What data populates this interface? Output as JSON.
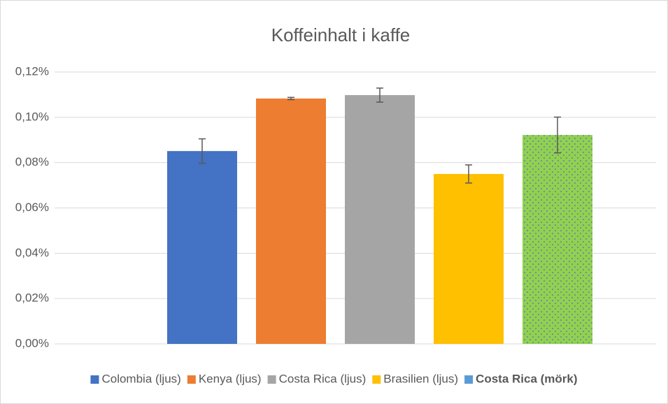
{
  "chart_data": {
    "type": "bar",
    "title": "Koffeinhalt i kaffe",
    "series": [
      {
        "name": "Colombia (ljus)",
        "color": "#4472c4",
        "values": [
          0.0851
        ],
        "errors": [
          0.0054
        ]
      },
      {
        "name": "Kenya (ljus)",
        "color": "#ed7d31",
        "values": [
          0.1083
        ],
        "errors": [
          0.0005
        ]
      },
      {
        "name": "Costa Rica (ljus)",
        "color": "#a5a5a5",
        "values": [
          0.1098
        ],
        "errors": [
          0.0031
        ]
      },
      {
        "name": "Brasilien (ljus)",
        "color": "#ffc000",
        "values": [
          0.075
        ],
        "errors": [
          0.004
        ]
      },
      {
        "name": "Costa Rica (mörk)",
        "color": "#92d050",
        "pattern": "dots",
        "legend_color": "#5b9bd5",
        "legend_bold": true,
        "values": [
          0.0922
        ],
        "errors": [
          0.0079
        ]
      }
    ],
    "ylim": [
      0,
      0.12
    ],
    "yticks": [
      {
        "value": 0,
        "label": "0,00%"
      },
      {
        "value": 0.02,
        "label": "0,02%"
      },
      {
        "value": 0.04,
        "label": "0,04%"
      },
      {
        "value": 0.06,
        "label": "0,06%"
      },
      {
        "value": 0.08,
        "label": "0,08%"
      },
      {
        "value": 0.1,
        "label": "0,10%"
      },
      {
        "value": 0.12,
        "label": "0,12%"
      }
    ],
    "grid": true,
    "legend": "bottom"
  }
}
